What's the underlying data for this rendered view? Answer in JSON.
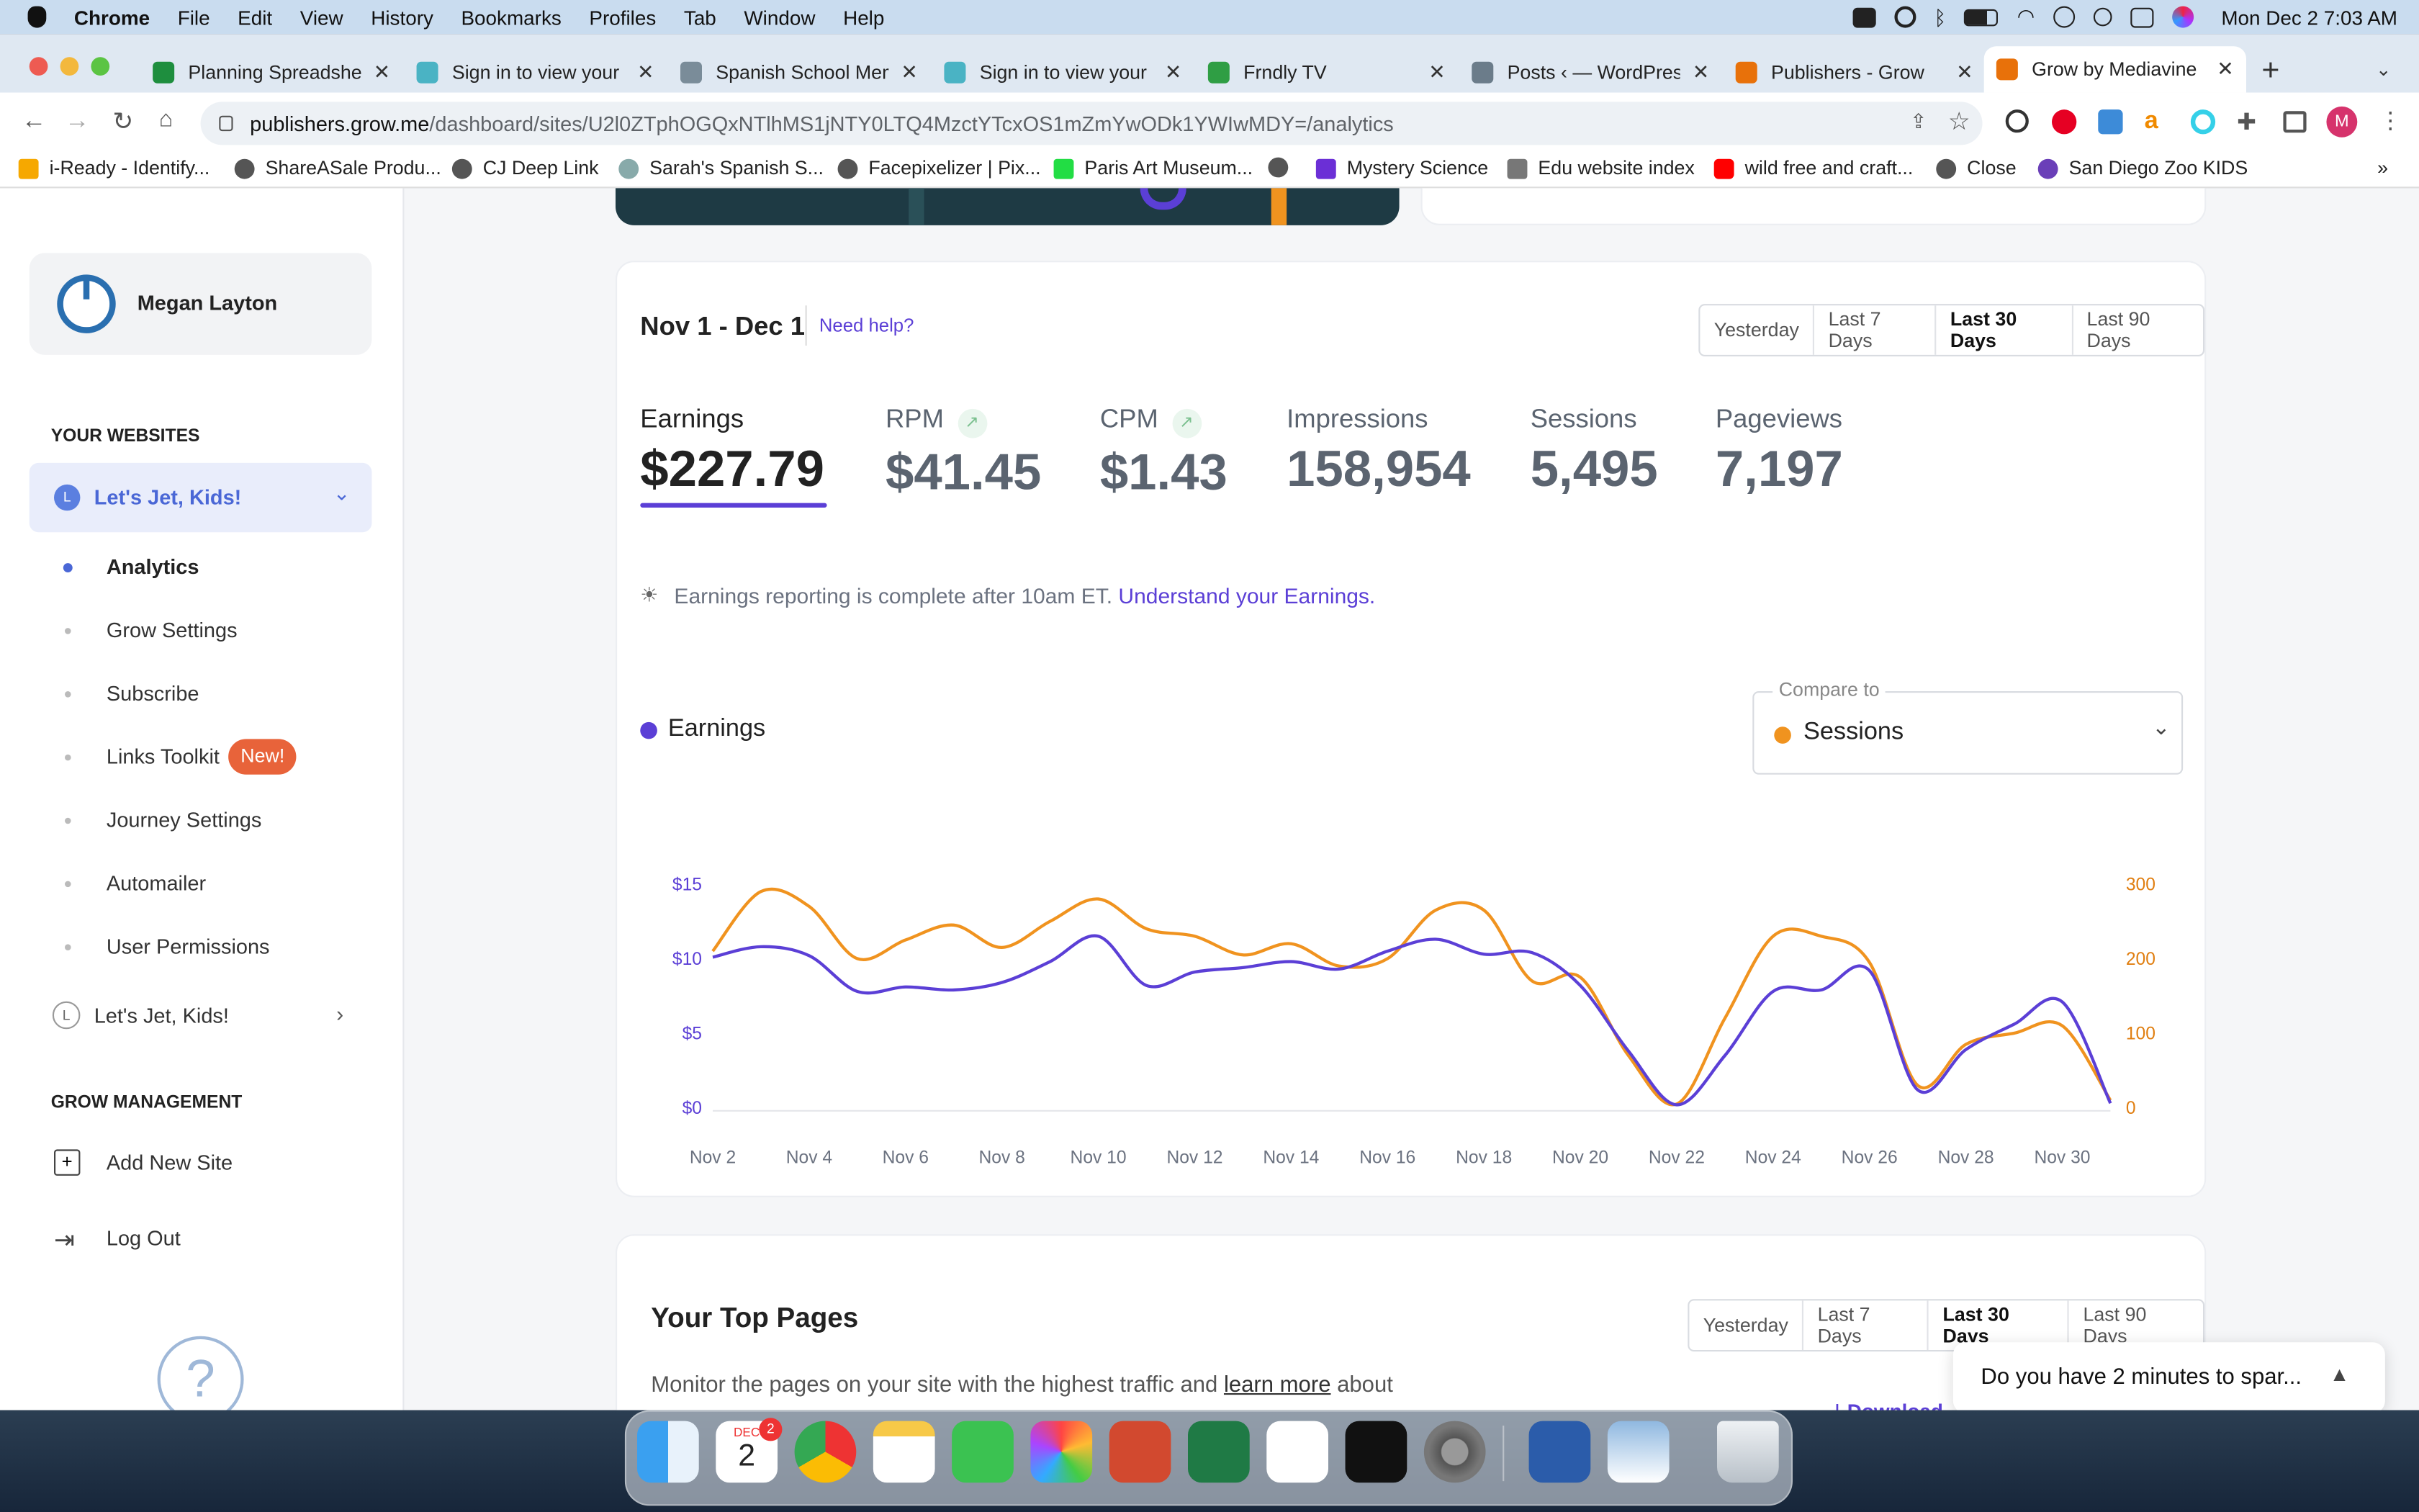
{
  "menubar": {
    "app": "Chrome",
    "items": [
      "File",
      "Edit",
      "View",
      "History",
      "Bookmarks",
      "Profiles",
      "Tab",
      "Window",
      "Help"
    ],
    "datetime": "Mon Dec 2  7:03 AM"
  },
  "tabs": [
    {
      "title": "Planning Spreadsheet",
      "color": "#1e8e3e"
    },
    {
      "title": "Sign in to view your doc",
      "color": "#4ab3c4"
    },
    {
      "title": "Spanish School Memories",
      "color": "#7a8c99"
    },
    {
      "title": "Sign in to view your doc",
      "color": "#4ab3c4"
    },
    {
      "title": "Frndly TV",
      "color": "#2f9e44"
    },
    {
      "title": "Posts ‹ — WordPress",
      "color": "#6b7c8a"
    },
    {
      "title": "Publishers - Grow",
      "color": "#e8710a"
    },
    {
      "title": "Grow by Mediavine",
      "color": "#e8710a"
    }
  ],
  "url": {
    "host": "publishers.grow.me",
    "path": "/dashboard/sites/U2l0ZTphOGQxNTlhMS1jNTY0LTQ4MzctYTcxOS1mZmYwODk1YWIwMDY=/analytics"
  },
  "bookmarks": [
    "i-Ready - Identify...",
    "ShareASale Produ...",
    "CJ Deep Link",
    "Sarah's Spanish S...",
    "Facepixelizer | Pix...",
    "Paris Art Museum...",
    "",
    "Mystery Science",
    "Edu website index",
    "wild free and craft...",
    "Close",
    "San Diego Zoo KIDS"
  ],
  "sidebar": {
    "user": "Megan Layton",
    "websites_heading": "YOUR WEBSITES",
    "site": "Let's Jet, Kids!",
    "nav": [
      "Analytics",
      "Grow Settings",
      "Subscribe",
      "Links Toolkit",
      "Journey Settings",
      "Automailer",
      "User Permissions"
    ],
    "new_badge": "New!",
    "site2": "Let's Jet, Kids!",
    "mgmt_heading": "GROW MANAGEMENT",
    "add_site": "Add New Site",
    "logout": "Log Out"
  },
  "analytics": {
    "range": "Nov 1 - Dec 1",
    "help": "Need help?",
    "periods": [
      "Yesterday",
      "Last 7 Days",
      "Last 30 Days",
      "Last 90 Days"
    ],
    "metrics": [
      {
        "label": "Earnings",
        "value": "$227.79"
      },
      {
        "label": "RPM",
        "value": "$41.45"
      },
      {
        "label": "CPM",
        "value": "$1.43"
      },
      {
        "label": "Impressions",
        "value": "158,954"
      },
      {
        "label": "Sessions",
        "value": "5,495"
      },
      {
        "label": "Pageviews",
        "value": "7,197"
      }
    ],
    "notice": "Earnings reporting is complete after 10am ET.",
    "notice_link": "Understand your Earnings.",
    "legend": "Earnings",
    "compare_label": "Compare to",
    "compare_value": "Sessions"
  },
  "chart_data": {
    "type": "line",
    "x": [
      "Nov 2",
      "Nov 3",
      "Nov 4",
      "Nov 5",
      "Nov 6",
      "Nov 7",
      "Nov 8",
      "Nov 9",
      "Nov 10",
      "Nov 11",
      "Nov 12",
      "Nov 13",
      "Nov 14",
      "Nov 15",
      "Nov 16",
      "Nov 17",
      "Nov 18",
      "Nov 19",
      "Nov 20",
      "Nov 21",
      "Nov 22",
      "Nov 23",
      "Nov 24",
      "Nov 25",
      "Nov 26",
      "Nov 27",
      "Nov 28",
      "Nov 29",
      "Nov 30",
      "Dec 1"
    ],
    "xticks": [
      "Nov 2",
      "Nov 4",
      "Nov 6",
      "Nov 8",
      "Nov 10",
      "Nov 12",
      "Nov 14",
      "Nov 16",
      "Nov 18",
      "Nov 20",
      "Nov 22",
      "Nov 24",
      "Nov 26",
      "Nov 28",
      "Nov 30"
    ],
    "series": [
      {
        "name": "Earnings",
        "color": "#5b3fd6",
        "axis": "left",
        "values": [
          10.1,
          10.8,
          10.2,
          7.8,
          8.1,
          7.9,
          8.4,
          9.8,
          11.5,
          8.2,
          9.1,
          9.4,
          9.8,
          9.3,
          10.5,
          11.3,
          10.3,
          10.4,
          8.2,
          3.8,
          0.2,
          3.5,
          7.8,
          7.9,
          9.2,
          1.2,
          3.9,
          5.6,
          7.1,
          0.3
        ]
      },
      {
        "name": "Sessions",
        "color": "#f0931f",
        "axis": "right",
        "values": [
          210,
          290,
          270,
          200,
          225,
          245,
          215,
          250,
          280,
          240,
          230,
          205,
          220,
          190,
          200,
          265,
          265,
          170,
          175,
          70,
          5,
          120,
          230,
          230,
          195,
          30,
          85,
          100,
          110,
          10
        ]
      }
    ],
    "yticks_left": [
      "$15",
      "$10",
      "$5",
      "$0"
    ],
    "yticks_right": [
      "300",
      "200",
      "100",
      "0"
    ],
    "ylim_left": [
      0,
      15
    ],
    "ylim_right": [
      0,
      300
    ]
  },
  "top_pages": {
    "title": "Your Top Pages",
    "periods": [
      "Yesterday",
      "Last 7 Days",
      "Last 30 Days",
      "Last 90 Days"
    ],
    "desc": "Monitor the pages on your site with the highest traffic and",
    "desc_link": "learn more",
    "desc_end": "about",
    "download": "Download"
  },
  "survey": "Do you have 2 minutes to spar...",
  "dock": {
    "calendar_month": "DEC",
    "calendar_day": "2",
    "badge": "2"
  }
}
